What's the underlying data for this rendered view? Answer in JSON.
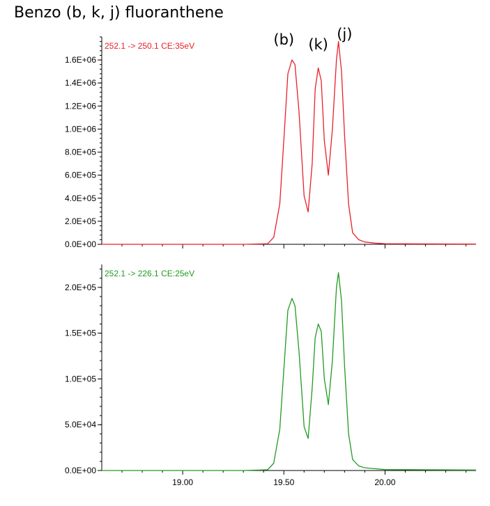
{
  "title": "Benzo (b, k, j) fluoranthene",
  "colors": {
    "top": "#e8202a",
    "bottom": "#229a22",
    "axis": "#000000"
  },
  "chart_data": [
    {
      "type": "line",
      "title": "Benzo (b, k, j) fluoranthene",
      "trace_label": "252.1 -> 250.1 CE:35eV",
      "color": "#e8202a",
      "xlim": [
        18.6,
        20.45
      ],
      "ylim": [
        0,
        1800000
      ],
      "xticks": [
        19.0,
        19.5,
        20.0
      ],
      "xtick_labels": [
        "19.00",
        "19.50",
        "20.00"
      ],
      "yticks": [
        0,
        200000,
        400000,
        600000,
        800000,
        1000000,
        1200000,
        1400000,
        1600000
      ],
      "ytick_labels": [
        "0.0E+00",
        "2.0E+05",
        "4.0E+05",
        "6.0E+05",
        "8.0E+05",
        "1.0E+06",
        "1.2E+06",
        "1.4E+06",
        "1.6E+06"
      ],
      "annotations": [
        {
          "text": "(b)",
          "x": 19.5
        },
        {
          "text": "(k)",
          "x": 19.67
        },
        {
          "text": "(j)",
          "x": 19.8
        }
      ],
      "x": [
        18.6,
        19.3,
        19.42,
        19.45,
        19.48,
        19.5,
        19.52,
        19.54,
        19.555,
        19.575,
        19.6,
        19.62,
        19.64,
        19.655,
        19.67,
        19.685,
        19.7,
        19.72,
        19.74,
        19.76,
        19.77,
        19.785,
        19.8,
        19.82,
        19.84,
        19.87,
        19.9,
        19.95,
        20.0,
        20.45
      ],
      "y": [
        0,
        0,
        5000,
        60000,
        350000,
        900000,
        1480000,
        1600000,
        1560000,
        1150000,
        420000,
        280000,
        700000,
        1350000,
        1530000,
        1420000,
        900000,
        600000,
        1000000,
        1600000,
        1760000,
        1500000,
        950000,
        350000,
        100000,
        40000,
        20000,
        10000,
        5000,
        2000
      ]
    },
    {
      "type": "line",
      "trace_label": "252.1 -> 226.1 CE:25eV",
      "color": "#229a22",
      "xlim": [
        18.6,
        20.45
      ],
      "ylim": [
        0,
        225000
      ],
      "xticks": [
        19.0,
        19.5,
        20.0
      ],
      "xtick_labels": [
        "19.00",
        "19.50",
        "20.00"
      ],
      "yticks": [
        0,
        50000,
        100000,
        150000,
        200000
      ],
      "ytick_labels": [
        "0.0E+00",
        "5.0E+04",
        "1.0E+05",
        "1.5E+05",
        "2.0E+05"
      ],
      "x": [
        18.6,
        19.3,
        19.42,
        19.45,
        19.48,
        19.5,
        19.52,
        19.54,
        19.555,
        19.575,
        19.6,
        19.62,
        19.64,
        19.655,
        19.67,
        19.685,
        19.7,
        19.72,
        19.74,
        19.76,
        19.77,
        19.785,
        19.8,
        19.82,
        19.84,
        19.87,
        19.9,
        19.95,
        20.0,
        20.45
      ],
      "y": [
        0,
        0,
        800,
        8000,
        45000,
        110000,
        175000,
        188000,
        180000,
        130000,
        48000,
        35000,
        90000,
        145000,
        160000,
        152000,
        100000,
        72000,
        120000,
        200000,
        216000,
        185000,
        115000,
        40000,
        12000,
        5000,
        3000,
        2000,
        1000,
        500
      ]
    }
  ]
}
